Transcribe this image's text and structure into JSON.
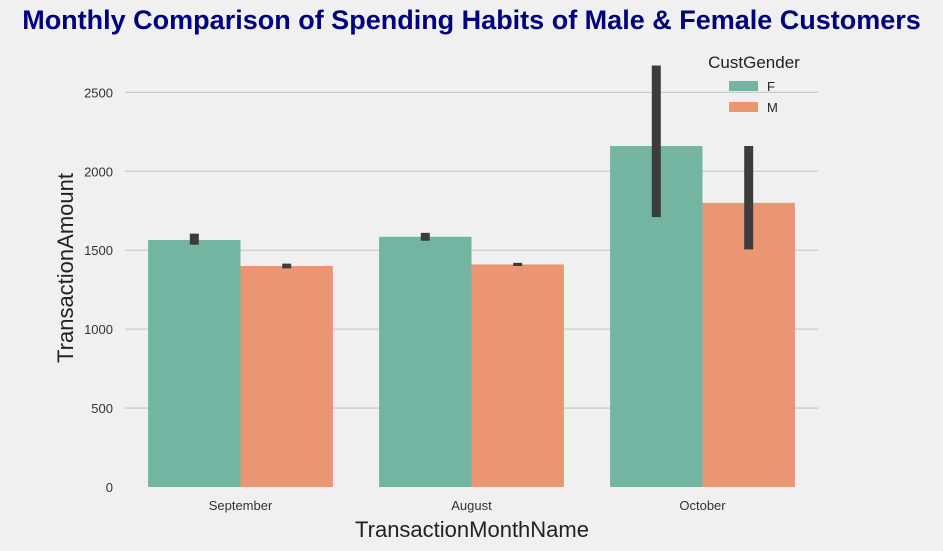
{
  "chart_data": {
    "type": "bar",
    "title": "Monthly Comparison of Spending Habits of Male & Female Customers",
    "xlabel": "TransactionMonthName",
    "ylabel": "TransactionAmount",
    "categories": [
      "September",
      "August",
      "October"
    ],
    "ylim": [
      0,
      2800
    ],
    "yticks": [
      0,
      500,
      1000,
      1500,
      2000,
      2500
    ],
    "grid": true,
    "legend": {
      "title": "CustGender",
      "placement": "top-right"
    },
    "series": [
      {
        "name": "F",
        "color": "#73b5a0",
        "values": [
          1565,
          1585,
          2160
        ],
        "error_low": [
          1535,
          1560,
          1710
        ],
        "error_high": [
          1605,
          1610,
          2670
        ]
      },
      {
        "name": "M",
        "color": "#ea9673",
        "values": [
          1400,
          1410,
          1800
        ],
        "error_low": [
          1385,
          1400,
          1505
        ],
        "error_high": [
          1415,
          1420,
          2160
        ]
      }
    ],
    "title_color": "#00007f",
    "error_bar_color": "#3c3c3c"
  }
}
